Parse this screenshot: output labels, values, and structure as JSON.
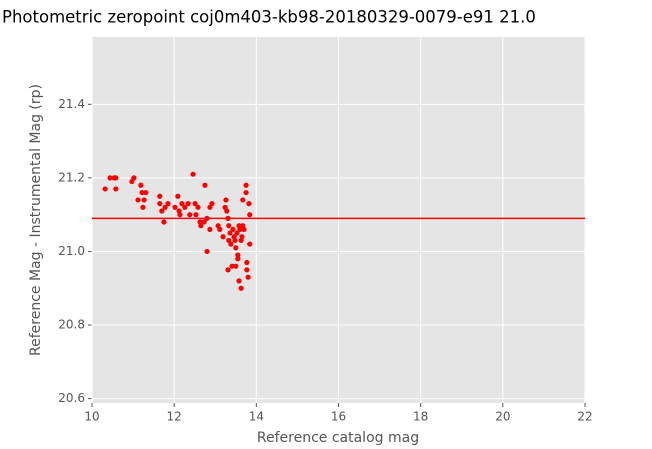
{
  "chart_data": {
    "type": "scatter",
    "title": "Photometric zeropoint coj0m403-kb98-20180329-0079-e91 21.0",
    "xlabel": "Reference catalog mag",
    "ylabel": "Reference Mag - Instrumental Mag (rp)",
    "color": "#ff0000",
    "hline": 21.09,
    "hline_color": "#ff0000",
    "xlim": [
      10,
      22
    ],
    "ylim": [
      20.588,
      21.583
    ],
    "xticks": [
      10,
      12,
      14,
      16,
      18,
      20,
      22
    ],
    "yticks": [
      20.6,
      20.8,
      {
        "value": 21,
        "label": "21.0"
      },
      21.2,
      21.4
    ],
    "grid": true,
    "x": [
      10.32,
      10.44,
      10.54,
      10.58,
      10.58,
      10.97,
      11.02,
      11.12,
      11.19,
      11.22,
      11.27,
      11.24,
      11.31,
      11.65,
      11.65,
      11.7,
      11.75,
      11.78,
      11.85,
      12.02,
      12.09,
      12.12,
      12.14,
      12.19,
      12.26,
      12.34,
      12.38,
      12.46,
      12.51,
      12.53,
      12.58,
      12.63,
      12.65,
      12.73,
      12.75,
      12.8,
      12.8,
      12.87,
      12.92,
      12.87,
      13.07,
      13.11,
      13.19,
      13.24,
      13.26,
      13.28,
      13.31,
      13.33,
      13.36,
      13.33,
      13.38,
      13.31,
      13.41,
      13.43,
      13.46,
      13.48,
      13.5,
      13.53,
      13.55,
      13.5,
      13.55,
      13.58,
      13.6,
      13.63,
      13.65,
      13.67,
      13.67,
      13.58,
      13.63,
      13.7,
      13.75,
      13.75,
      13.77,
      13.77,
      13.8,
      13.82,
      13.84,
      13.84
    ],
    "values": [
      21.17,
      21.2,
      21.2,
      21.17,
      21.2,
      21.19,
      21.2,
      21.14,
      21.18,
      21.16,
      21.14,
      21.12,
      21.16,
      21.15,
      21.13,
      21.11,
      21.08,
      21.12,
      21.13,
      21.12,
      21.15,
      21.11,
      21.1,
      21.13,
      21.12,
      21.13,
      21.1,
      21.21,
      21.13,
      21.1,
      21.12,
      21.08,
      21.07,
      21.08,
      21.18,
      21.09,
      21.0,
      21.12,
      21.13,
      21.06,
      21.07,
      21.06,
      21.04,
      21.12,
      21.14,
      21.11,
      21.09,
      21.07,
      21.05,
      21.03,
      21.02,
      20.95,
      20.96,
      21.06,
      21.04,
      21.03,
      21.01,
      21.05,
      20.99,
      20.96,
      20.98,
      21.07,
      21.06,
      21.03,
      21.04,
      21.14,
      21.07,
      20.92,
      20.9,
      21.06,
      21.18,
      21.16,
      20.97,
      20.95,
      20.93,
      21.13,
      21.1,
      21.02
    ]
  }
}
